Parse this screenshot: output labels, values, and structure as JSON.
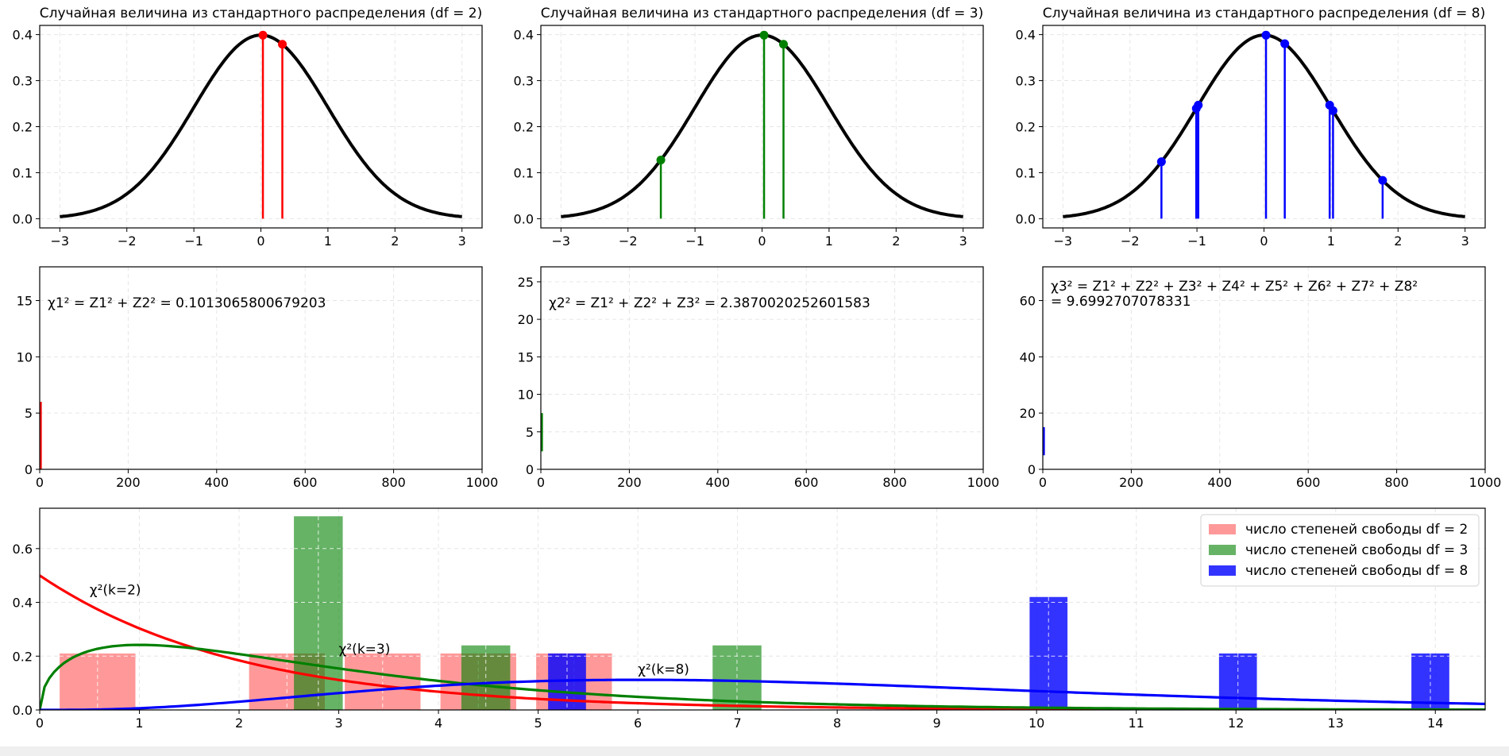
{
  "chart_data": [
    {
      "id": "normal-df2",
      "type": "line",
      "title": "Случайная величина из стандартного распределения (df = 2)",
      "curve": "standard-normal-pdf",
      "color": "#ff0000",
      "xlim": [
        -3.3,
        3.3
      ],
      "ylim": [
        -0.02,
        0.42
      ],
      "xticks": [
        -3,
        -2,
        -1,
        0,
        1,
        2,
        3
      ],
      "yticks": [
        0.0,
        0.1,
        0.2,
        0.3,
        0.4
      ],
      "samples": [
        0.03,
        0.32
      ],
      "grid": true
    },
    {
      "id": "normal-df3",
      "type": "line",
      "title": "Случайная величина из стандартного распределения (df = 3)",
      "curve": "standard-normal-pdf",
      "color": "#008000",
      "xlim": [
        -3.3,
        3.3
      ],
      "ylim": [
        -0.02,
        0.42
      ],
      "xticks": [
        -3,
        -2,
        -1,
        0,
        1,
        2,
        3
      ],
      "yticks": [
        0.0,
        0.1,
        0.2,
        0.3,
        0.4
      ],
      "samples": [
        -1.51,
        0.03,
        0.32
      ],
      "grid": true
    },
    {
      "id": "normal-df8",
      "type": "line",
      "title": "Случайная величина из стандартного распределения (df = 8)",
      "curve": "standard-normal-pdf",
      "color": "#0000ff",
      "xlim": [
        -3.3,
        3.3
      ],
      "ylim": [
        -0.02,
        0.42
      ],
      "xticks": [
        -3,
        -2,
        -1,
        0,
        1,
        2,
        3
      ],
      "yticks": [
        0.0,
        0.1,
        0.2,
        0.3,
        0.4
      ],
      "samples": [
        -1.53,
        -1.01,
        -0.98,
        0.03,
        0.31,
        0.98,
        1.03,
        1.77
      ],
      "grid": true
    },
    {
      "id": "chi2-trace-df2",
      "type": "line",
      "annotation": "χ1² = Z1² + Z2² = 0.1013065800679203",
      "color": "#ff0000",
      "xlim": [
        0,
        1000
      ],
      "ylim": [
        0,
        18
      ],
      "xticks": [
        0,
        200,
        400,
        600,
        800,
        1000
      ],
      "yticks": [
        0,
        5,
        10,
        15
      ],
      "segment": {
        "x": 2,
        "y": [
          0,
          6
        ]
      },
      "grid": true
    },
    {
      "id": "chi2-trace-df3",
      "type": "line",
      "annotation": "χ2² = Z1² + Z2² + Z3² = 2.3870020252601583",
      "color": "#008000",
      "xlim": [
        0,
        1000
      ],
      "ylim": [
        0,
        27
      ],
      "xticks": [
        0,
        200,
        400,
        600,
        800,
        1000
      ],
      "yticks": [
        0,
        5,
        10,
        15,
        20,
        25
      ],
      "segment": {
        "x": 2,
        "y": [
          2.4,
          7.5
        ]
      },
      "grid": true
    },
    {
      "id": "chi2-trace-df8",
      "type": "line",
      "annotation_lines": [
        "χ3² = Z1² + Z2² + Z3² + Z4² + Z5² + Z6² + Z7² + Z8²",
        " = 9.6992707078331"
      ],
      "color": "#0000ff",
      "xlim": [
        0,
        1000
      ],
      "ylim": [
        0,
        72
      ],
      "xticks": [
        0,
        200,
        400,
        600,
        800,
        1000
      ],
      "yticks": [
        0,
        20,
        40,
        60
      ],
      "segment": {
        "x": 2,
        "y": [
          5,
          15
        ]
      },
      "grid": true
    },
    {
      "id": "chi2-histograms",
      "type": "bar",
      "xlim": [
        0,
        14.5
      ],
      "ylim": [
        0,
        0.75
      ],
      "xticks": [
        0,
        1,
        2,
        3,
        4,
        5,
        6,
        7,
        8,
        9,
        10,
        11,
        12,
        13,
        14
      ],
      "yticks": [
        0.0,
        0.2,
        0.4,
        0.6
      ],
      "grid": true,
      "legend_position": "top-right",
      "series": [
        {
          "name": "число степеней свободы df = 2",
          "color": "#ff0000",
          "bars": [
            {
              "x0": 0.2,
              "x1": 0.96,
              "h": 0.21
            },
            {
              "x0": 2.1,
              "x1": 2.86,
              "h": 0.21
            },
            {
              "x0": 3.06,
              "x1": 3.82,
              "h": 0.21
            },
            {
              "x0": 4.02,
              "x1": 4.78,
              "h": 0.21
            },
            {
              "x0": 4.98,
              "x1": 5.74,
              "h": 0.21
            }
          ],
          "curve": "chi2-pdf-k2",
          "curve_label": "χ²(k=2)",
          "curve_label_pos": [
            0.5,
            0.43
          ]
        },
        {
          "name": "число степеней свободы df = 3",
          "color": "#008000",
          "bars": [
            {
              "x0": 2.55,
              "x1": 3.04,
              "h": 0.72
            },
            {
              "x0": 4.23,
              "x1": 4.72,
              "h": 0.24
            },
            {
              "x0": 6.75,
              "x1": 7.24,
              "h": 0.24
            }
          ],
          "curve": "chi2-pdf-k3",
          "curve_label": "χ²(k=3)",
          "curve_label_pos": [
            3.0,
            0.21
          ]
        },
        {
          "name": "число степеней свободы df = 8",
          "color": "#0000ff",
          "bars": [
            {
              "x0": 5.1,
              "x1": 5.48,
              "h": 0.21
            },
            {
              "x0": 9.93,
              "x1": 10.31,
              "h": 0.42
            },
            {
              "x0": 11.83,
              "x1": 12.21,
              "h": 0.21
            },
            {
              "x0": 13.76,
              "x1": 14.14,
              "h": 0.21
            }
          ],
          "curve": "chi2-pdf-k8",
          "curve_label": "χ²(k=8)",
          "curve_label_pos": [
            6.0,
            0.135
          ]
        }
      ]
    }
  ]
}
